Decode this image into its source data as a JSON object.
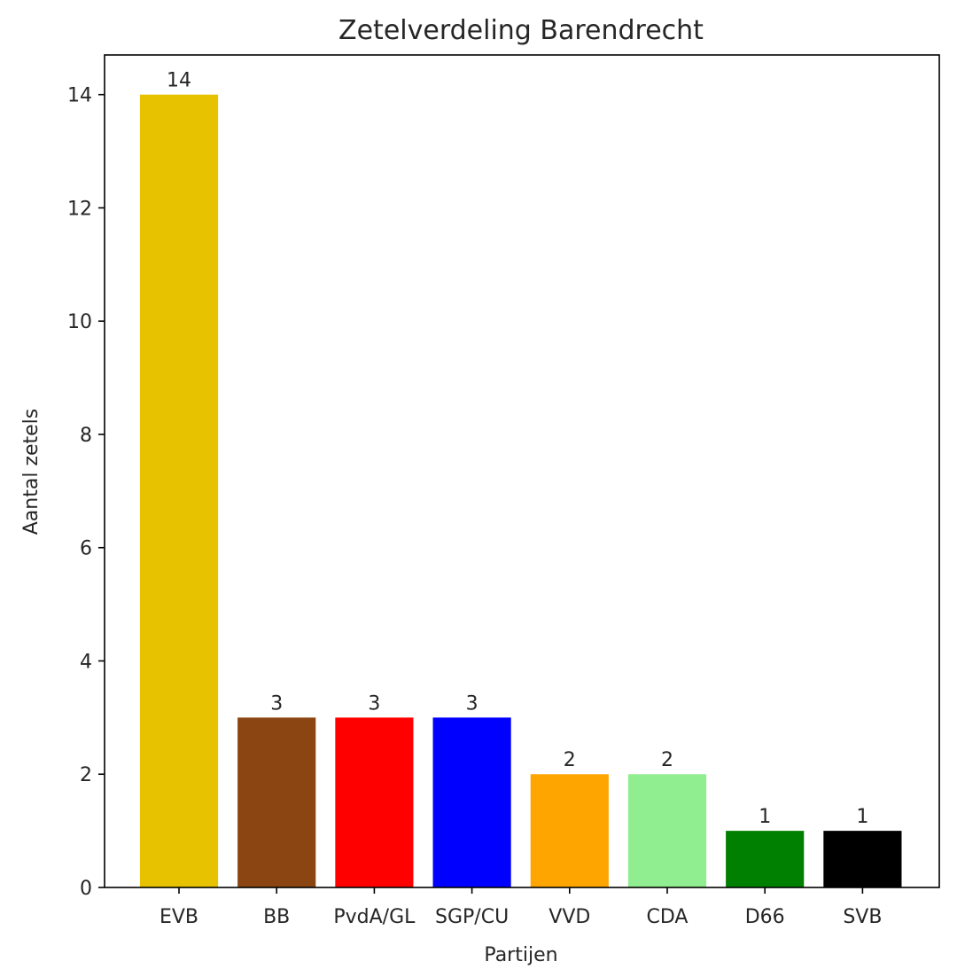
{
  "chart_data": {
    "type": "bar",
    "title": "Zetelverdeling Barendrecht",
    "xlabel": "Partijen",
    "ylabel": "Aantal zetels",
    "categories": [
      "EVB",
      "BB",
      "PvdA/GL",
      "SGP/CU",
      "VVD",
      "CDA",
      "D66",
      "SVB"
    ],
    "values": [
      14,
      3,
      3,
      3,
      2,
      2,
      1,
      1
    ],
    "bar_labels": [
      "14",
      "3",
      "3",
      "3",
      "2",
      "2",
      "1",
      "1"
    ],
    "colors": [
      "#e6c200",
      "#8b4513",
      "#ff0000",
      "#0000ff",
      "#ffa500",
      "#90ee90",
      "#008000",
      "#000000"
    ],
    "ylim": [
      0,
      14.7
    ],
    "yticks": [
      0,
      2,
      4,
      6,
      8,
      10,
      12,
      14
    ],
    "ytick_labels": [
      "0",
      "2",
      "4",
      "6",
      "8",
      "10",
      "12",
      "14"
    ],
    "grid": false,
    "legend": false
  }
}
